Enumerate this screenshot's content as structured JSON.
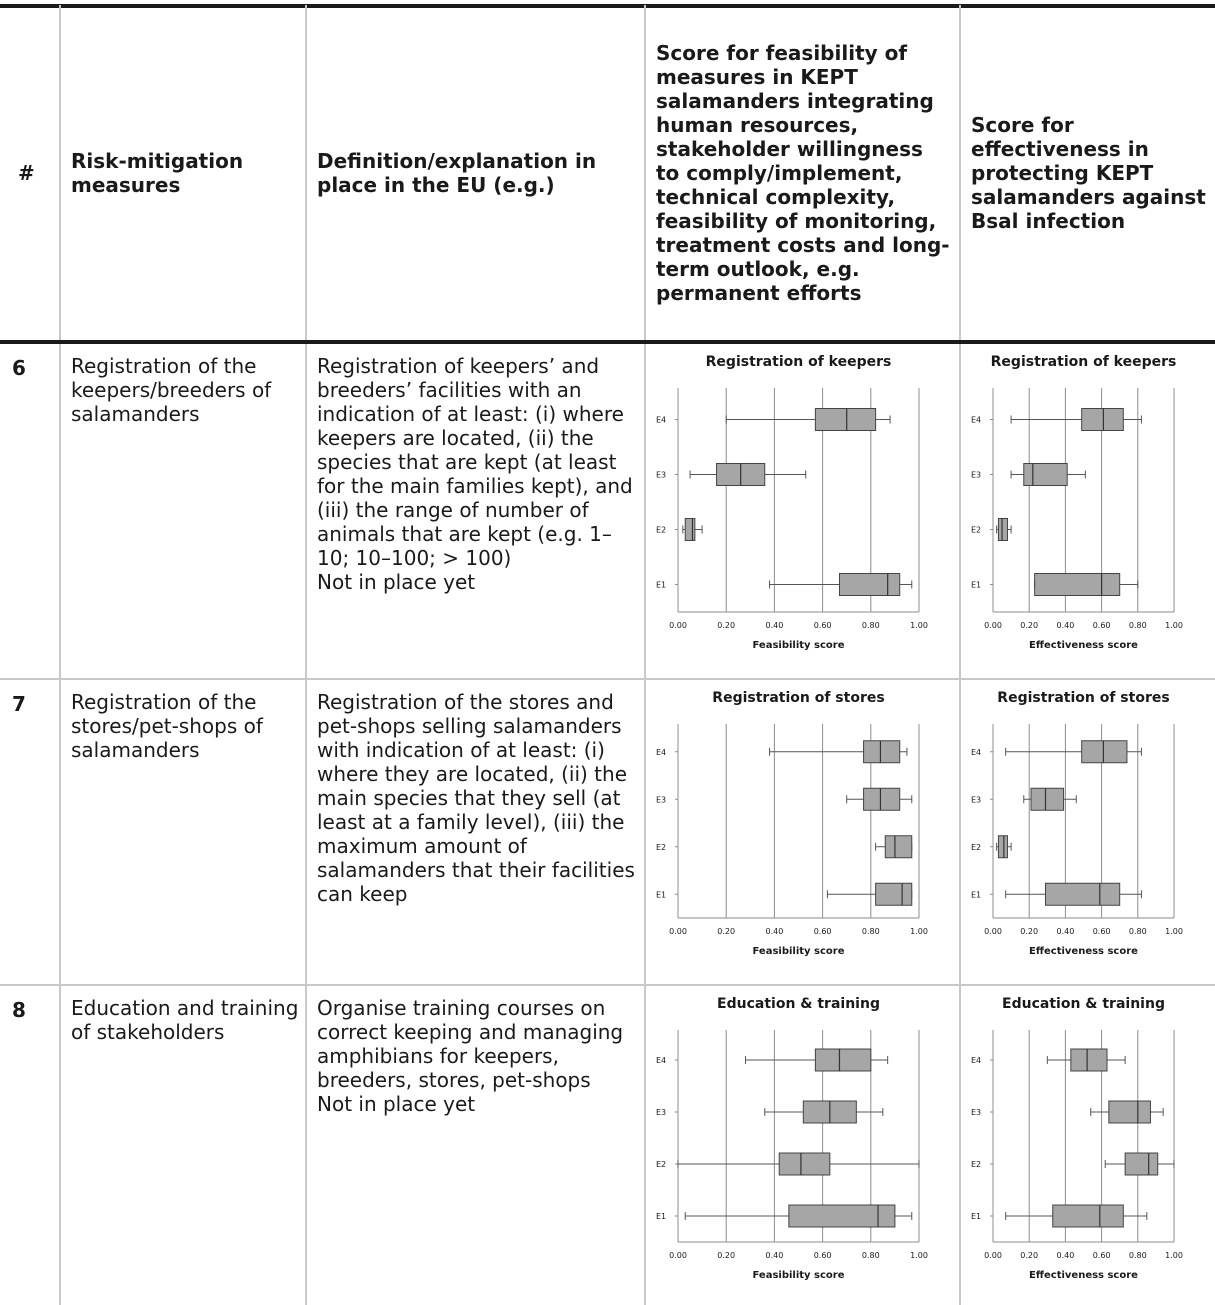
{
  "table": {
    "headers": {
      "num": "#",
      "measure": "Risk-mitigation measures",
      "definition": "Definition/explanation in place in the EU (e.g.)",
      "feasibility": "Score for feasibility of measures in KEPT salamanders integrating human resources, stakeholder willingness to comply/implement, technical complexity, feasibility of monitoring, treatment costs and long-term outlook, e.g. permanent efforts",
      "effectiveness": "Score for effectiveness in protecting KEPT salamanders against Bsal infection"
    },
    "rows": [
      {
        "num": "6",
        "measure": "Registration of the keepers/breeders of salamanders",
        "definition": "Registration of keepers’ and breeders’ facilities with an indication of at least: (i) where keepers are located, (ii) the species that are kept (at least for the main families kept), and (iii) the range of number of animals that are kept (e.g. 1–10; 10–100; > 100)",
        "status": "Not in place yet"
      },
      {
        "num": "7",
        "measure": "Registration of the stores/pet-shops of salamanders",
        "definition": "Registration of the stores and pet-shops selling salamanders with indication of at least: (i) where they are located, (ii) the main species that they sell (at least at a family level), (iii) the maximum amount of salamanders that their facilities can keep",
        "status": ""
      },
      {
        "num": "8",
        "measure": "Education and training of stakeholders",
        "definition": "Organise training courses on correct keeping and managing amphibians for keepers, breeders, stores, pet-shops",
        "status": "Not in place yet"
      }
    ]
  },
  "chart_data": [
    {
      "type": "boxplot",
      "orientation": "horizontal",
      "title": "Registration of keepers",
      "xlabel": "Feasibility score",
      "categories": [
        "E4",
        "E3",
        "E2",
        "E1"
      ],
      "xlim": [
        0,
        1
      ],
      "xticks": [
        "0.00",
        "0.20",
        "0.40",
        "0.60",
        "0.80",
        "1.00"
      ],
      "boxes": [
        {
          "min": 0.2,
          "q1": 0.57,
          "median": 0.7,
          "q3": 0.82,
          "max": 0.88
        },
        {
          "min": 0.05,
          "q1": 0.16,
          "median": 0.26,
          "q3": 0.36,
          "max": 0.53
        },
        {
          "min": 0.02,
          "q1": 0.03,
          "median": 0.06,
          "q3": 0.07,
          "max": 0.1
        },
        {
          "min": 0.38,
          "q1": 0.67,
          "median": 0.87,
          "q3": 0.92,
          "max": 0.97
        }
      ]
    },
    {
      "type": "boxplot",
      "orientation": "horizontal",
      "title": "Registration of keepers",
      "xlabel": "Effectiveness score",
      "categories": [
        "E4",
        "E3",
        "E2",
        "E1"
      ],
      "xlim": [
        0,
        1
      ],
      "xticks": [
        "0.00",
        "0.20",
        "0.40",
        "0.60",
        "0.80",
        "1.00"
      ],
      "boxes": [
        {
          "min": 0.1,
          "q1": 0.49,
          "median": 0.61,
          "q3": 0.72,
          "max": 0.82
        },
        {
          "min": 0.1,
          "q1": 0.17,
          "median": 0.22,
          "q3": 0.41,
          "max": 0.51
        },
        {
          "min": 0.02,
          "q1": 0.03,
          "median": 0.05,
          "q3": 0.08,
          "max": 0.1
        },
        {
          "min": 0.23,
          "q1": 0.23,
          "median": 0.6,
          "q3": 0.7,
          "max": 0.8
        }
      ]
    },
    {
      "type": "boxplot",
      "orientation": "horizontal",
      "title": "Registration of stores",
      "xlabel": "Feasibility score",
      "categories": [
        "E4",
        "E3",
        "E2",
        "E1"
      ],
      "xlim": [
        0,
        1
      ],
      "xticks": [
        "0.00",
        "0.20",
        "0.40",
        "0.60",
        "0.80",
        "1.00"
      ],
      "boxes": [
        {
          "min": 0.38,
          "q1": 0.77,
          "median": 0.84,
          "q3": 0.92,
          "max": 0.95
        },
        {
          "min": 0.7,
          "q1": 0.77,
          "median": 0.84,
          "q3": 0.92,
          "max": 0.97
        },
        {
          "min": 0.82,
          "q1": 0.86,
          "median": 0.9,
          "q3": 0.97,
          "max": 0.97
        },
        {
          "min": 0.62,
          "q1": 0.82,
          "median": 0.93,
          "q3": 0.97,
          "max": 0.97
        }
      ]
    },
    {
      "type": "boxplot",
      "orientation": "horizontal",
      "title": "Registration of stores",
      "xlabel": "Effectiveness score",
      "categories": [
        "E4",
        "E3",
        "E2",
        "E1"
      ],
      "xlim": [
        0,
        1
      ],
      "xticks": [
        "0.00",
        "0.20",
        "0.40",
        "0.60",
        "0.80",
        "1.00"
      ],
      "boxes": [
        {
          "min": 0.07,
          "q1": 0.49,
          "median": 0.61,
          "q3": 0.74,
          "max": 0.82
        },
        {
          "min": 0.17,
          "q1": 0.21,
          "median": 0.29,
          "q3": 0.39,
          "max": 0.46
        },
        {
          "min": 0.02,
          "q1": 0.03,
          "median": 0.06,
          "q3": 0.08,
          "max": 0.1
        },
        {
          "min": 0.07,
          "q1": 0.29,
          "median": 0.59,
          "q3": 0.7,
          "max": 0.82
        }
      ]
    },
    {
      "type": "boxplot",
      "orientation": "horizontal",
      "title": "Education & training",
      "xlabel": "Feasibility score",
      "categories": [
        "E4",
        "E3",
        "E2",
        "E1"
      ],
      "xlim": [
        0,
        1
      ],
      "xticks": [
        "0.00",
        "0.20",
        "0.40",
        "0.60",
        "0.80",
        "1.00"
      ],
      "boxes": [
        {
          "min": 0.28,
          "q1": 0.57,
          "median": 0.67,
          "q3": 0.8,
          "max": 0.87
        },
        {
          "min": 0.36,
          "q1": 0.52,
          "median": 0.63,
          "q3": 0.74,
          "max": 0.85
        },
        {
          "min": 0.0,
          "q1": 0.42,
          "median": 0.51,
          "q3": 0.63,
          "max": 1.0
        },
        {
          "min": 0.03,
          "q1": 0.46,
          "median": 0.83,
          "q3": 0.9,
          "max": 0.97
        }
      ]
    },
    {
      "type": "boxplot",
      "orientation": "horizontal",
      "title": "Education & training",
      "xlabel": "Effectiveness score",
      "categories": [
        "E4",
        "E3",
        "E2",
        "E1"
      ],
      "xlim": [
        0,
        1
      ],
      "xticks": [
        "0.00",
        "0.20",
        "0.40",
        "0.60",
        "0.80",
        "1.00"
      ],
      "boxes": [
        {
          "min": 0.3,
          "q1": 0.43,
          "median": 0.52,
          "q3": 0.63,
          "max": 0.73
        },
        {
          "min": 0.54,
          "q1": 0.64,
          "median": 0.8,
          "q3": 0.87,
          "max": 0.94
        },
        {
          "min": 0.62,
          "q1": 0.73,
          "median": 0.86,
          "q3": 0.91,
          "max": 1.0
        },
        {
          "min": 0.07,
          "q1": 0.33,
          "median": 0.59,
          "q3": 0.72,
          "max": 0.85
        }
      ]
    }
  ]
}
